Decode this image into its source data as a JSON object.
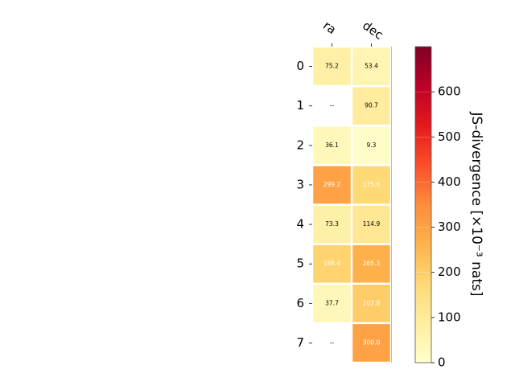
{
  "chart_data": {
    "type": "heatmap",
    "columns": [
      "ra",
      "dec"
    ],
    "rows": [
      "0",
      "1",
      "2",
      "3",
      "4",
      "5",
      "6",
      "7"
    ],
    "values": [
      [
        75.2,
        53.4
      ],
      [
        null,
        90.7
      ],
      [
        36.1,
        9.3
      ],
      [
        299.2,
        175.6
      ],
      [
        73.3,
        114.9
      ],
      [
        188.4,
        265.3
      ],
      [
        37.7,
        202.8
      ],
      [
        null,
        300.0
      ]
    ],
    "cell_labels": [
      [
        "75.2",
        "53.4"
      ],
      [
        "--",
        "90.7"
      ],
      [
        "36.1",
        "9.3"
      ],
      [
        "299.2",
        "175.6"
      ],
      [
        "73.3",
        "114.9"
      ],
      [
        "188.4",
        "265.3"
      ],
      [
        "37.7",
        "202.8"
      ],
      [
        "--",
        "300.0"
      ]
    ],
    "colormap": "YlOrRd",
    "colorbar": {
      "label": "JS-divergence [×10⁻³ nats]",
      "range": [
        0,
        700
      ],
      "ticks": [
        0,
        100,
        200,
        300,
        400,
        500,
        600
      ],
      "tick_labels": [
        "0",
        "100",
        "200",
        "300",
        "400",
        "500",
        "600"
      ]
    }
  }
}
